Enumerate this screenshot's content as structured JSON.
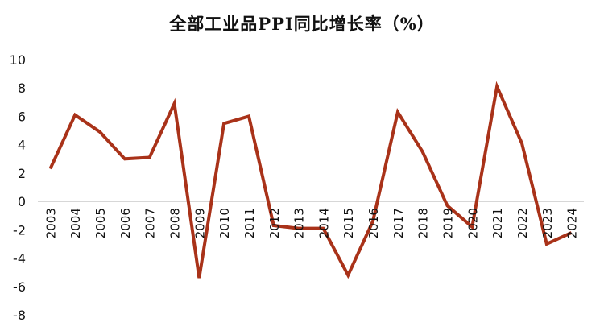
{
  "chart_data": {
    "type": "line",
    "title": "全部工业品PPI同比增长率（%）",
    "xlabel": "",
    "ylabel": "",
    "ylim": [
      -8,
      10
    ],
    "yticks": [
      -8,
      -6,
      -4,
      -2,
      0,
      2,
      4,
      6,
      8,
      10
    ],
    "grid": false,
    "legend": "none",
    "categories": [
      "2003",
      "2004",
      "2005",
      "2006",
      "2007",
      "2008",
      "2009",
      "2010",
      "2011",
      "2012",
      "2013",
      "2014",
      "2015",
      "2016",
      "2017",
      "2018",
      "2019",
      "2020",
      "2021",
      "2022",
      "2023",
      "2024"
    ],
    "series": [
      {
        "values": [
          2.3,
          6.1,
          4.9,
          3.0,
          3.1,
          6.9,
          -5.4,
          5.5,
          6.0,
          -1.7,
          -1.9,
          -1.9,
          -5.2,
          -1.4,
          6.3,
          3.5,
          -0.3,
          -1.8,
          8.1,
          4.1,
          -3.0,
          -2.2
        ],
        "color": "#a93219"
      }
    ],
    "axis_color": "#bfbfbf"
  }
}
